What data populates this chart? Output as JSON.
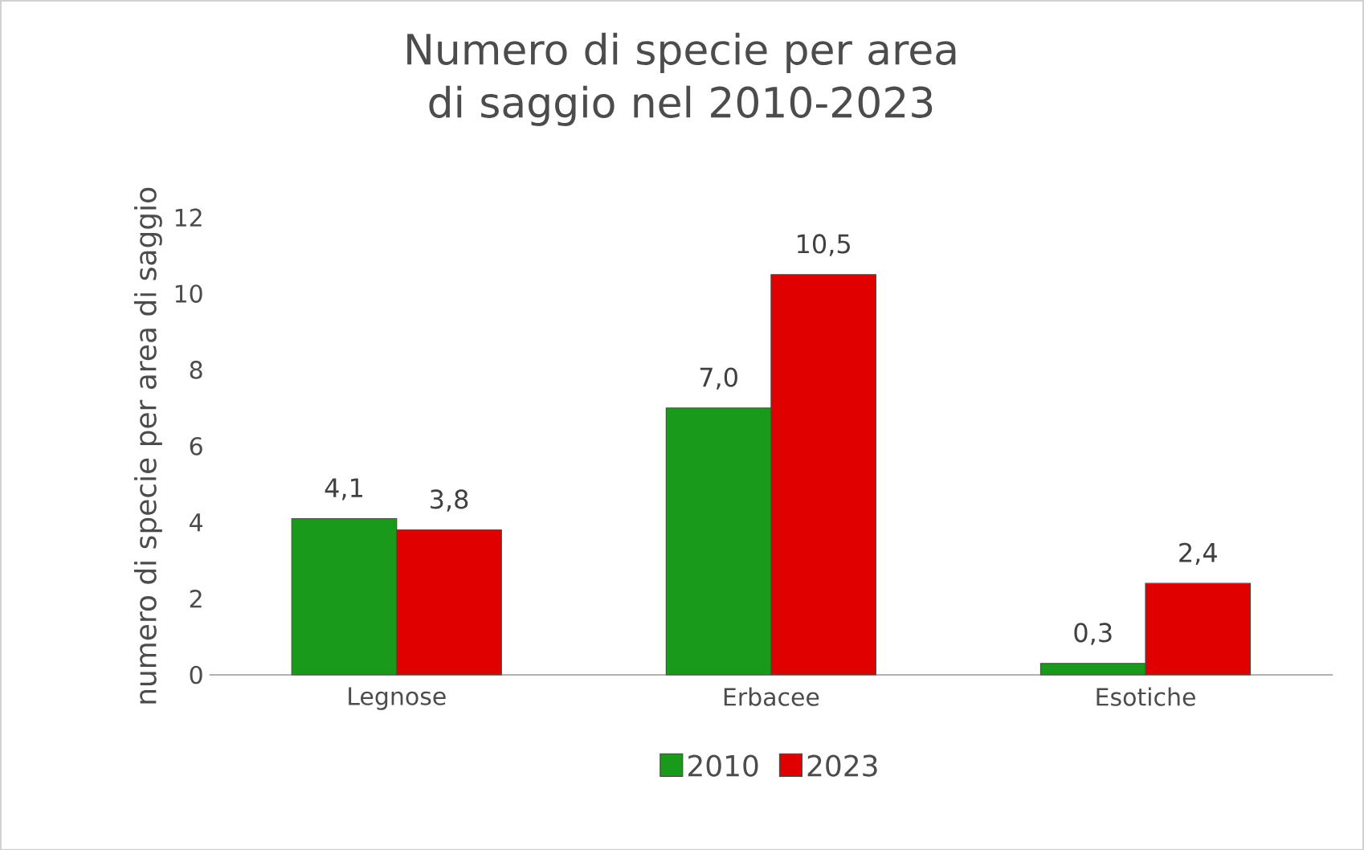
{
  "chart_data": {
    "type": "bar",
    "title": "Numero di specie per area di saggio nel 2010-2023",
    "ylabel": "numero di specie per area di saggio",
    "categories": [
      "Legnose",
      "Erbacee",
      "Esotiche"
    ],
    "series": [
      {
        "name": "2010",
        "color": "#1a9a1a",
        "values": [
          4.1,
          7.0,
          0.3
        ],
        "value_labels": [
          "4,1",
          "7,0",
          "0,3"
        ]
      },
      {
        "name": "2023",
        "color": "#e00000",
        "values": [
          3.8,
          10.5,
          2.4
        ],
        "value_labels": [
          "3,8",
          "10,5",
          "2,4"
        ]
      }
    ],
    "ylim": [
      0,
      12
    ],
    "yticks": [
      0,
      2,
      4,
      6,
      8,
      10,
      12
    ],
    "grid": false,
    "legend": "bottom"
  }
}
